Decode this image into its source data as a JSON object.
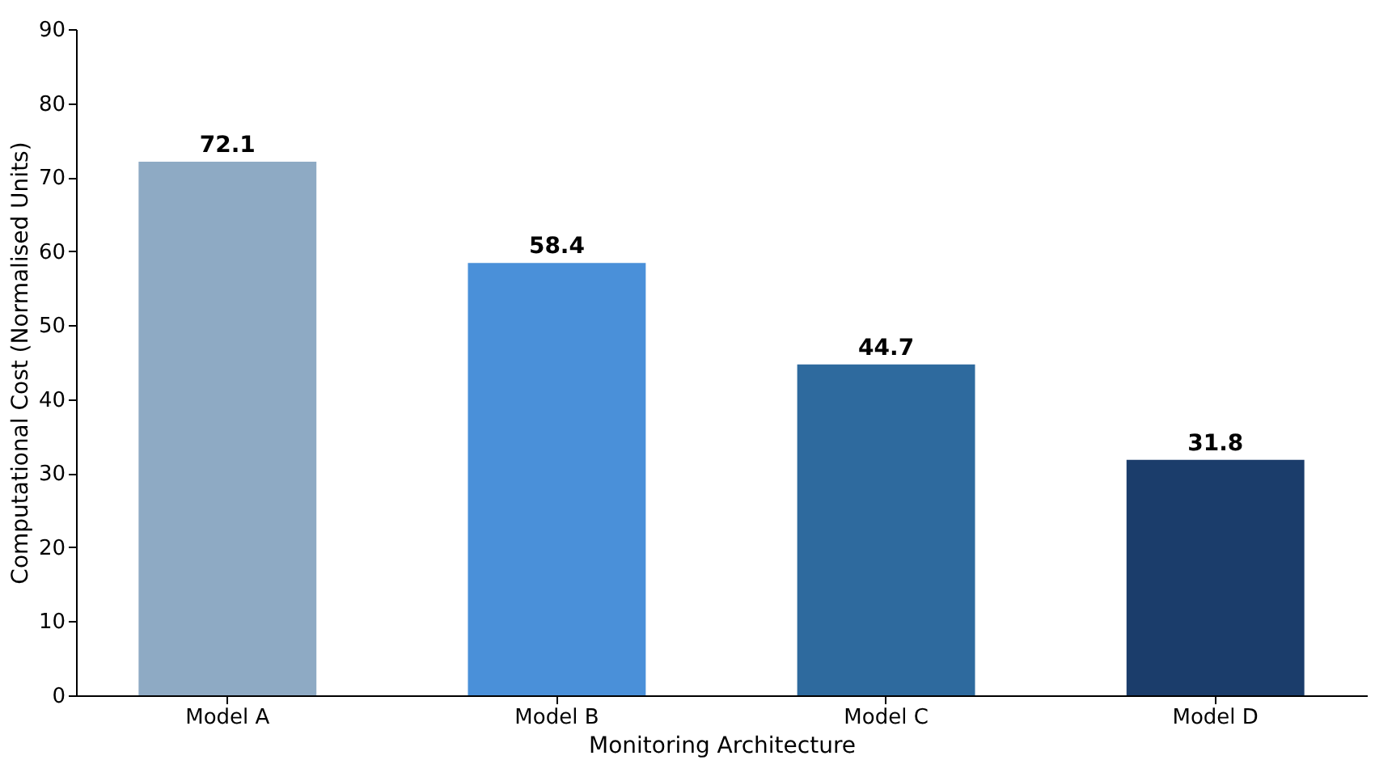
{
  "chart_data": {
    "type": "bar",
    "categories": [
      "Model A",
      "Model B",
      "Model C",
      "Model D"
    ],
    "values": [
      72.1,
      58.4,
      44.7,
      31.8
    ],
    "colors": [
      "#8eaac4",
      "#4a90d9",
      "#2e6a9e",
      "#1b3d6b"
    ],
    "xlabel": "Monitoring Architecture",
    "ylabel": "Computational Cost (Normalised Units)",
    "ylim": [
      0,
      90
    ],
    "yticks": [
      0,
      10,
      20,
      30,
      40,
      50,
      60,
      70,
      80,
      90
    ],
    "data_labels": true,
    "grid": false
  }
}
